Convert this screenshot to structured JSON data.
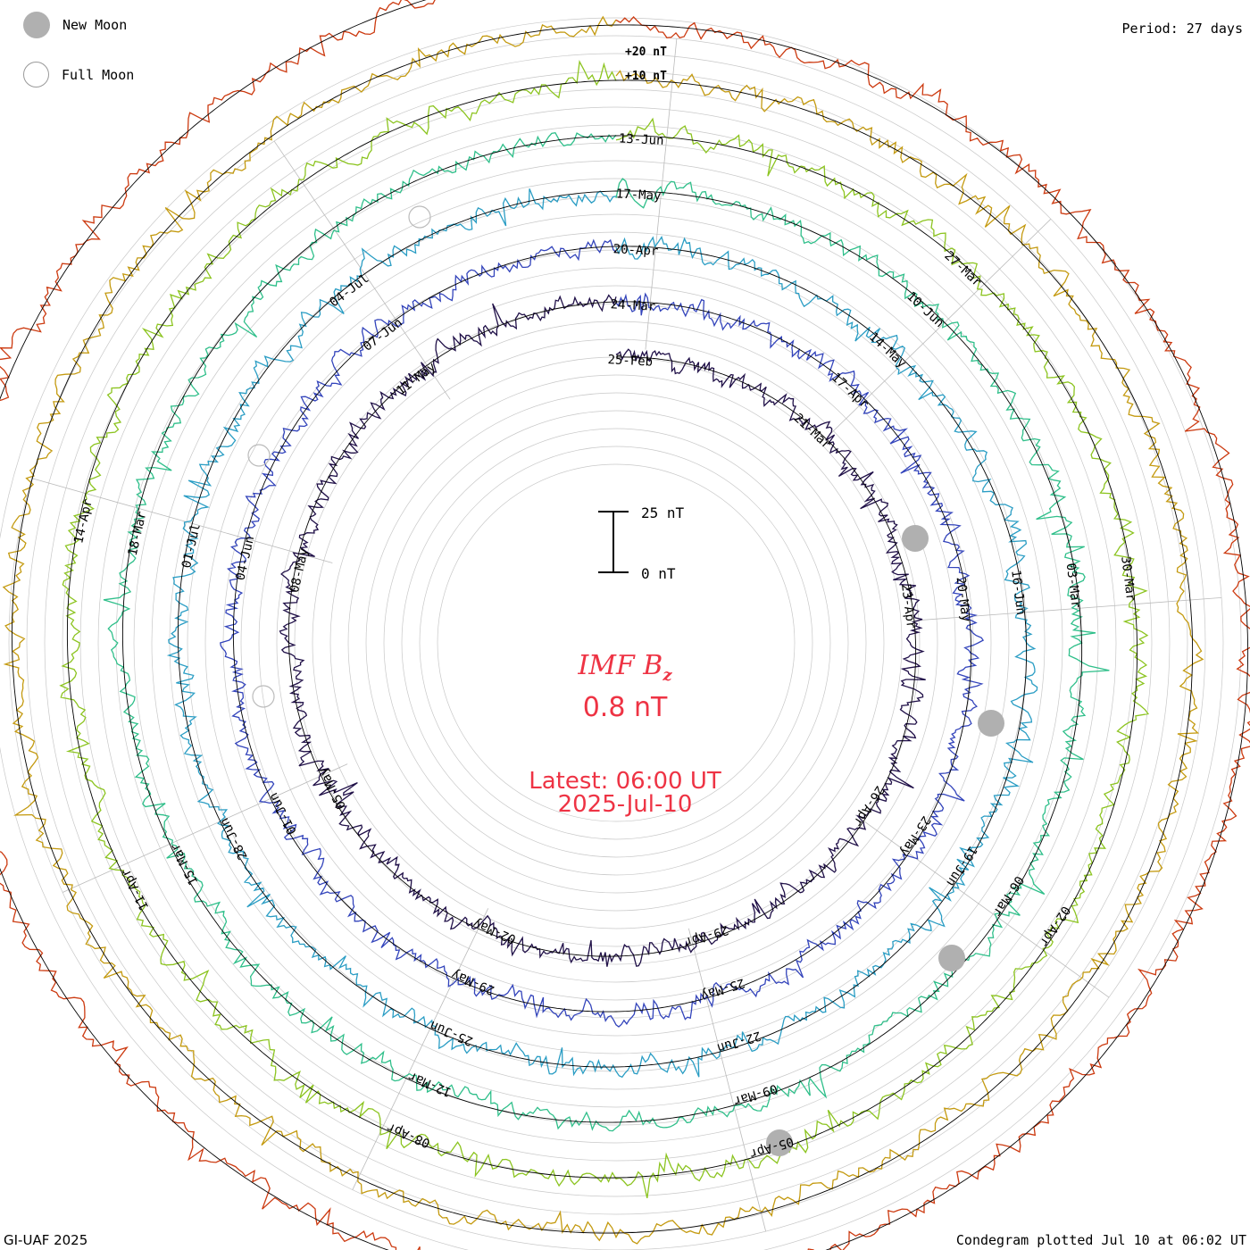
{
  "header": {
    "legend": [
      {
        "label": "New Moon",
        "icon": "new-moon-icon"
      },
      {
        "label": "Full Moon",
        "icon": "full-moon-icon"
      }
    ],
    "period": "Period: 27 days"
  },
  "footer": {
    "credit": "GI-UAF 2025",
    "plotted": "Condegram plotted Jul 10 at 06:02 UT"
  },
  "center": {
    "title_main": "IMF B",
    "title_sub": "z",
    "current_value": "0.8 nT",
    "latest_time": "Latest: 06:00 UT",
    "latest_date": "2025-Jul-10"
  },
  "colors": {
    "accent": "#ee3344",
    "moon_marker": "#b0b0b0",
    "grid": "#c8c8c8"
  },
  "chart_data": {
    "type": "line",
    "title": "IMF Bz",
    "projection": "spiral condegram",
    "period_days": 27,
    "scale_bar": {
      "top_label": "25 nT",
      "bottom_label": "0 nT",
      "top_value": 25,
      "bottom_value": 0
    },
    "ring_scale_labels": [
      "+20 nT",
      "+10 nT"
    ],
    "date_labels": [
      "25-Feb",
      "24-Mar",
      "20-Apr",
      "17-May",
      "13-Jun",
      "21-Mar",
      "17-Apr",
      "14-May",
      "10-Jun",
      "27-Mar",
      "23-Apr",
      "20-May",
      "16-Jun",
      "03-Mar",
      "30-Mar",
      "26-Apr",
      "23-May",
      "19-Jun",
      "06-Mar",
      "02-Apr",
      "29-Apr",
      "25-May",
      "22-Jun",
      "09-Mar",
      "05-Apr",
      "02-May",
      "29-May",
      "25-Jun",
      "12-Mar",
      "08-Apr",
      "05-May",
      "01-Jun",
      "28-Jun",
      "15-Mar",
      "11-Apr",
      "08-May",
      "04-Jun",
      "01-Jul",
      "18-Mar",
      "14-Apr",
      "11-May",
      "07-Jun",
      "04-Jul"
    ],
    "series": [
      {
        "cycle": 1,
        "color": "#201048",
        "start": "2025-Feb-25",
        "end": "2025-Mar-24"
      },
      {
        "cycle": 2,
        "color": "#3344bb",
        "start": "2025-Mar-24",
        "end": "2025-Apr-20"
      },
      {
        "cycle": 3,
        "color": "#2a9dc4",
        "start": "2025-Apr-20",
        "end": "2025-May-17"
      },
      {
        "cycle": 4,
        "color": "#2fbf8a",
        "start": "2025-May-17",
        "end": "2025-Jun-13"
      },
      {
        "cycle": 5,
        "color": "#8cc420",
        "start": "2025-Jun-13",
        "end": "2025-Jul-10"
      },
      {
        "cycle": 6,
        "color": "#c49a10",
        "start": "2025-Jun-13",
        "end": "2025-Jul-10"
      },
      {
        "cycle": 7,
        "color": "#cc3a10",
        "start": "2025-Jun-16",
        "end": "2025-Jul-10"
      }
    ],
    "moon_markers": {
      "new_moon": [
        "2025-Mar-29",
        "2025-Apr-27",
        "2025-May-27",
        "2025-Jun-25"
      ],
      "full_moon": [
        "2025-Apr-13",
        "2025-May-12",
        "2025-Jun-11"
      ]
    },
    "grid": true
  }
}
